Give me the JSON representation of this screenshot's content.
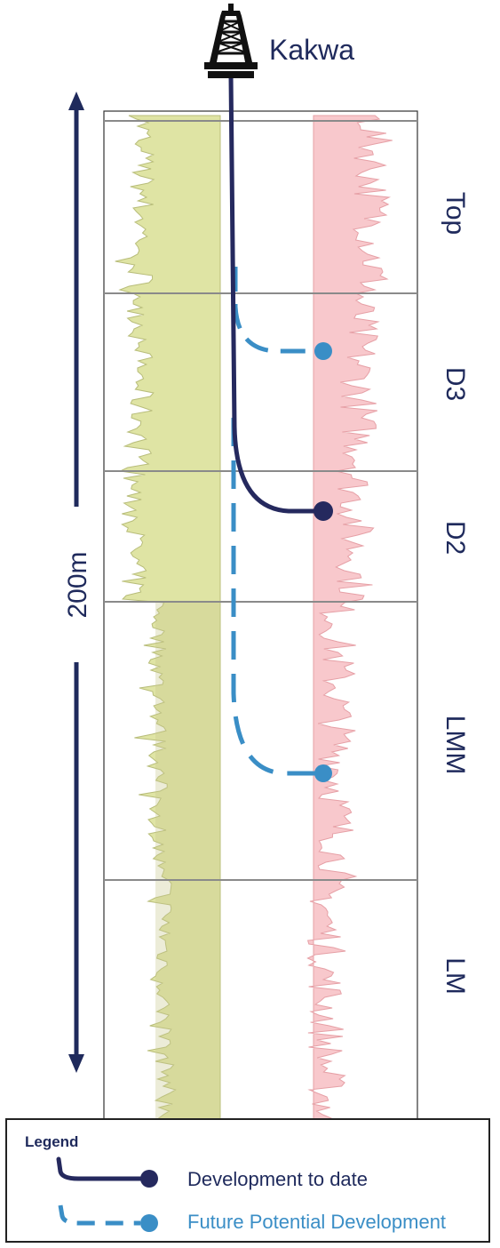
{
  "well": {
    "name": "Kakwa",
    "icon": "drilling-rig-icon"
  },
  "scale": {
    "label": "200m"
  },
  "zones": [
    {
      "label": "Top"
    },
    {
      "label": "D3"
    },
    {
      "label": "D2"
    },
    {
      "label": "LMM"
    },
    {
      "label": "LM"
    }
  ],
  "legend": {
    "title": "Legend",
    "items": [
      {
        "label": "Development to date",
        "color": "#25295e",
        "style": "solid"
      },
      {
        "label": "Future Potential Development",
        "color": "#3a8ec6",
        "style": "dashed"
      }
    ]
  },
  "colors": {
    "development": "#25295e",
    "future": "#3a8ec6",
    "gamma_fill": "#dfe4a4",
    "resistivity_fill": "#f8c8cc",
    "zone_line": "#8a8a8a"
  }
}
